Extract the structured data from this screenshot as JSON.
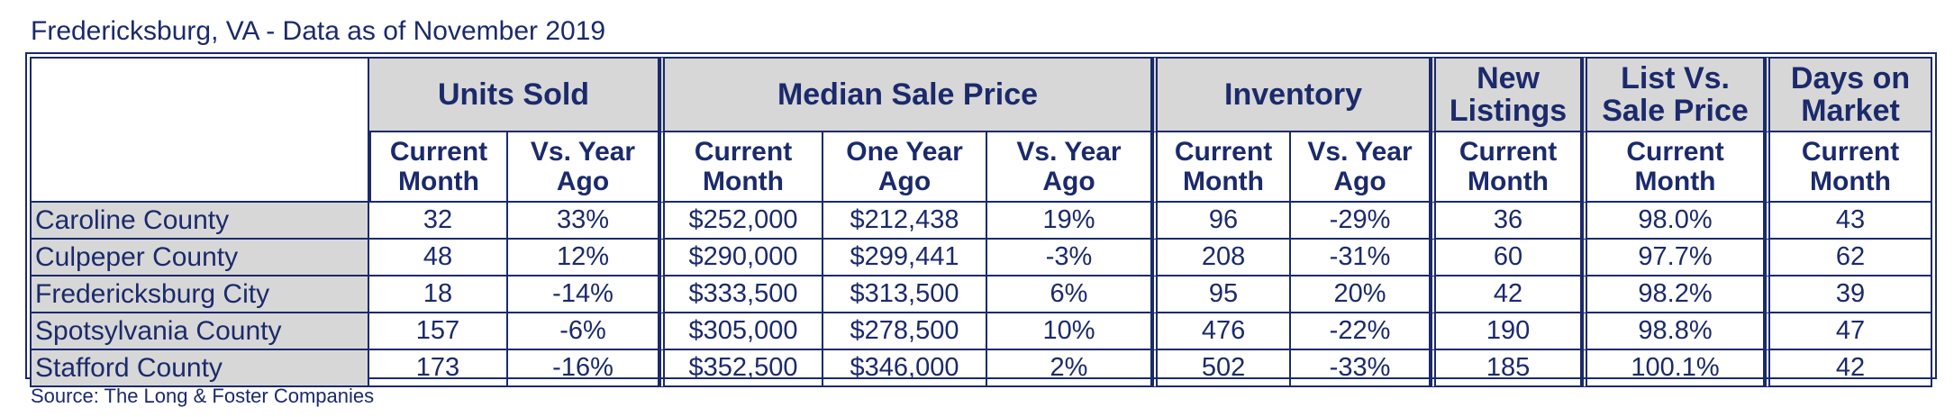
{
  "title": "Fredericksburg, VA - Data as of November 2019",
  "source": "Source: The Long & Foster Companies",
  "groups": {
    "units_sold": "Units Sold",
    "median_sale_price": "Median Sale Price",
    "inventory": "Inventory",
    "new_listings": "New Listings",
    "list_vs_sale": "List Vs. Sale Price",
    "days_on_market": "Days on Market"
  },
  "subheaders": {
    "current_month": "Current Month",
    "vs_year_ago": "Vs. Year Ago",
    "one_year_ago": "One Year Ago"
  },
  "rows": [
    {
      "name": "Caroline County",
      "units": "32",
      "units_vs": "33%",
      "price": "$252,000",
      "price_prev": "$212,438",
      "price_vs": "19%",
      "inv": "96",
      "inv_vs": "-29%",
      "new": "36",
      "list_sale": "98.0%",
      "dom": "43"
    },
    {
      "name": "Culpeper County",
      "units": "48",
      "units_vs": "12%",
      "price": "$290,000",
      "price_prev": "$299,441",
      "price_vs": "-3%",
      "inv": "208",
      "inv_vs": "-31%",
      "new": "60",
      "list_sale": "97.7%",
      "dom": "62"
    },
    {
      "name": "Fredericksburg City",
      "units": "18",
      "units_vs": "-14%",
      "price": "$333,500",
      "price_prev": "$313,500",
      "price_vs": "6%",
      "inv": "95",
      "inv_vs": "20%",
      "new": "42",
      "list_sale": "98.2%",
      "dom": "39"
    },
    {
      "name": "Spotsylvania County",
      "units": "157",
      "units_vs": "-6%",
      "price": "$305,000",
      "price_prev": "$278,500",
      "price_vs": "10%",
      "inv": "476",
      "inv_vs": "-22%",
      "new": "190",
      "list_sale": "98.8%",
      "dom": "47"
    },
    {
      "name": "Stafford County",
      "units": "173",
      "units_vs": "-16%",
      "price": "$352,500",
      "price_prev": "$346,000",
      "price_vs": "2%",
      "inv": "502",
      "inv_vs": "-33%",
      "new": "185",
      "list_sale": "100.1%",
      "dom": "42"
    }
  ]
}
